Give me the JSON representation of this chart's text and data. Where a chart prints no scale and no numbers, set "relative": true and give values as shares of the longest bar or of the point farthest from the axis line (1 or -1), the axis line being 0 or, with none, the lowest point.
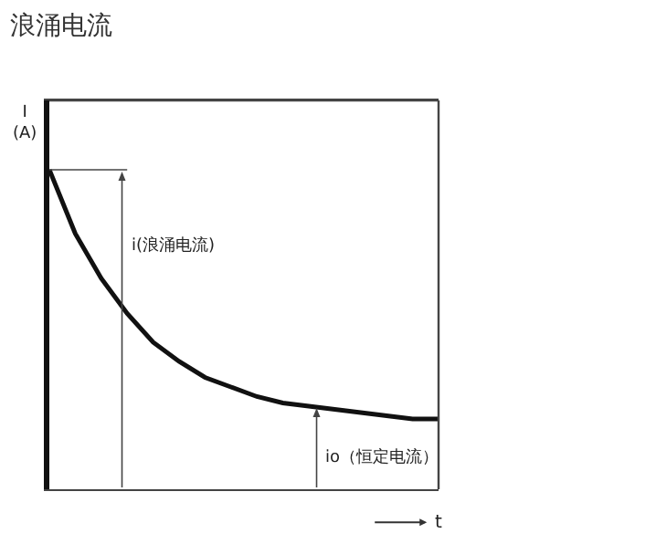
{
  "chart_data": {
    "type": "line",
    "title": "浪涌电流",
    "xlabel": "t",
    "ylabel": "I\n(A)",
    "relative": true,
    "color": "#111111",
    "grid": false,
    "legend": false,
    "marker": "none",
    "line_style": "solid",
    "categories": [
      null,
      null,
      null,
      null,
      null,
      null,
      null,
      null,
      null,
      null,
      null,
      null,
      null,
      null,
      null,
      null
    ],
    "values": [
      1.0,
      0.8,
      0.66,
      0.55,
      0.46,
      0.4,
      0.35,
      0.32,
      0.29,
      0.27,
      0.26,
      0.25,
      0.24,
      0.23,
      0.22,
      0.22
    ],
    "annotations": [
      "i(浪涌电流)",
      "io（恒定电流）"
    ]
  }
}
